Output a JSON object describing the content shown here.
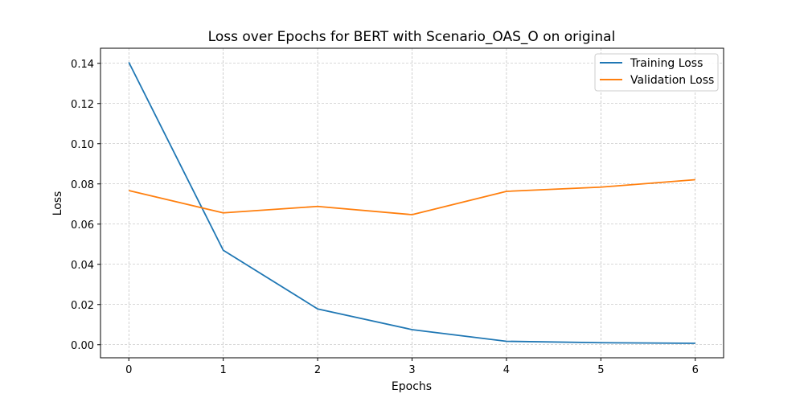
{
  "chart_data": {
    "type": "line",
    "title": "Loss over Epochs for BERT with Scenario_OAS_O on original",
    "xlabel": "Epochs",
    "ylabel": "Loss",
    "x": [
      0,
      1,
      2,
      3,
      4,
      5,
      6
    ],
    "xticks": [
      "0",
      "1",
      "2",
      "3",
      "4",
      "5",
      "6"
    ],
    "yticks": [
      "0.00",
      "0.02",
      "0.04",
      "0.06",
      "0.08",
      "0.10",
      "0.12",
      "0.14"
    ],
    "ytick_values": [
      0.0,
      0.02,
      0.04,
      0.06,
      0.08,
      0.1,
      0.12,
      0.14
    ],
    "xlim": [
      -0.3,
      6.3
    ],
    "ylim": [
      -0.0065,
      0.1475
    ],
    "grid": true,
    "legend_position": "top-right",
    "series": [
      {
        "name": "Training Loss",
        "color": "#1f77b4",
        "values": [
          0.1405,
          0.047,
          0.0178,
          0.0075,
          0.0017,
          0.001,
          0.0007
        ]
      },
      {
        "name": "Validation Loss",
        "color": "#ff7f0e",
        "values": [
          0.0767,
          0.0656,
          0.0688,
          0.0647,
          0.0763,
          0.0784,
          0.0821
        ]
      }
    ]
  }
}
